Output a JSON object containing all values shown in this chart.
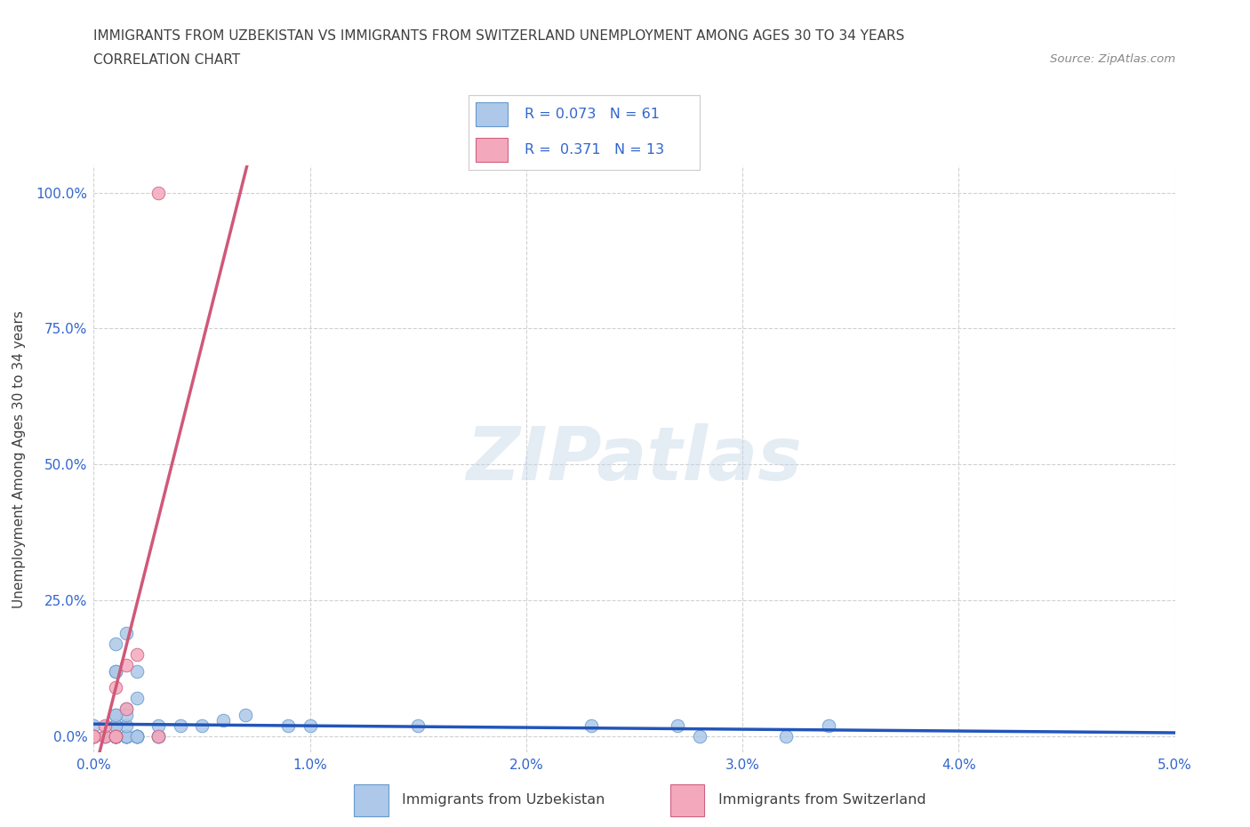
{
  "title_line1": "IMMIGRANTS FROM UZBEKISTAN VS IMMIGRANTS FROM SWITZERLAND UNEMPLOYMENT AMONG AGES 30 TO 34 YEARS",
  "title_line2": "CORRELATION CHART",
  "source_text": "Source: ZipAtlas.com",
  "ylabel": "Unemployment Among Ages 30 to 34 years",
  "xmin": 0.0,
  "xmax": 0.05,
  "ymin": -0.03,
  "ymax": 1.05,
  "yticks": [
    0.0,
    0.25,
    0.5,
    0.75,
    1.0
  ],
  "ytick_labels": [
    "0.0%",
    "25.0%",
    "50.0%",
    "75.0%",
    "100.0%"
  ],
  "xticks": [
    0.0,
    0.01,
    0.02,
    0.03,
    0.04,
    0.05
  ],
  "xtick_labels": [
    "0.0%",
    "1.0%",
    "2.0%",
    "3.0%",
    "4.0%",
    "5.0%"
  ],
  "series1_color": "#adc8e8",
  "series1_edge_color": "#6699cc",
  "series2_color": "#f4a8bc",
  "series2_edge_color": "#d06080",
  "trend1_color": "#2255bb",
  "trend2_color": "#d05878",
  "trend2_dash_color": "#d4a0b4",
  "r1": 0.073,
  "n1": 61,
  "r2": 0.371,
  "n2": 13,
  "legend_label1": "Immigrants from Uzbekistan",
  "legend_label2": "Immigrants from Switzerland",
  "watermark": "ZIPatlas",
  "background_color": "#ffffff",
  "grid_color": "#cccccc",
  "axis_color": "#3366cc",
  "title_color": "#404040",
  "uzbekistan_x": [
    0.0,
    0.0005,
    0.001,
    0.0005,
    0.001,
    0.0015,
    0.001,
    0.0,
    0.001,
    0.001,
    0.0015,
    0.002,
    0.001,
    0.0015,
    0.001,
    0.002,
    0.003,
    0.0015,
    0.001,
    0.0015,
    0.002,
    0.001,
    0.001,
    0.0015,
    0.002,
    0.003,
    0.002,
    0.001,
    0.0015,
    0.001,
    0.003,
    0.002,
    0.003,
    0.0015,
    0.004,
    0.005,
    0.006,
    0.007,
    0.0015,
    0.001,
    0.001,
    0.002,
    0.001,
    0.01,
    0.009,
    0.0015,
    0.001,
    0.001,
    0.001,
    0.015,
    0.0,
    0.002,
    0.001,
    0.0015,
    0.001,
    0.023,
    0.028,
    0.032,
    0.0,
    0.027,
    0.034
  ],
  "uzbekistan_y": [
    0.0,
    0.0,
    0.0,
    0.0,
    0.0,
    0.0,
    0.0,
    0.0,
    0.0,
    0.0,
    0.0,
    0.0,
    0.0,
    0.0,
    0.0,
    0.0,
    0.0,
    0.0,
    0.0,
    0.0,
    0.0,
    0.0,
    0.0,
    0.0,
    0.0,
    0.0,
    0.0,
    0.0,
    0.0,
    0.0,
    0.0,
    0.0,
    0.02,
    0.02,
    0.02,
    0.02,
    0.03,
    0.04,
    0.05,
    0.04,
    0.02,
    0.07,
    0.02,
    0.02,
    0.02,
    0.04,
    0.04,
    0.12,
    0.12,
    0.02,
    0.02,
    0.12,
    0.17,
    0.19,
    0.0,
    0.02,
    0.0,
    0.0,
    0.0,
    0.02,
    0.02
  ],
  "switzerland_x": [
    0.0,
    0.0005,
    0.0,
    0.001,
    0.0005,
    0.0015,
    0.001,
    0.0015,
    0.002,
    0.001,
    0.003,
    0.0,
    0.003
  ],
  "switzerland_y": [
    0.0,
    0.0,
    0.0,
    0.0,
    0.02,
    0.05,
    0.09,
    0.13,
    0.15,
    0.0,
    0.0,
    0.0,
    1.0
  ],
  "sw_trend_x_solid_end": 0.025,
  "sw_trend_x_dash_end": 0.05,
  "uz_trend_slope": 0.073,
  "sw_trend_slope": 14.8,
  "sw_trend_intercept": 0.0
}
